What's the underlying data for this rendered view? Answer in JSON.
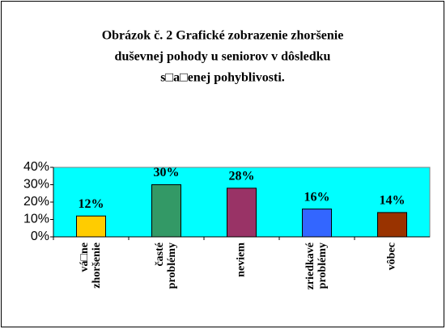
{
  "chart_data": {
    "type": "bar",
    "title": [
      "Obrázok č. 2 Grafické zobrazenie zhoršenie",
      "duševnej pohody u seniorov v dôsledku",
      "s□a□enej pohyblivosti."
    ],
    "categories": [
      [
        "vá□ne",
        "zhoršenie"
      ],
      [
        "časté",
        "problémy"
      ],
      [
        "neviem"
      ],
      [
        "zriedkavé",
        "problémy"
      ],
      [
        "vôbec"
      ]
    ],
    "values": [
      12,
      30,
      28,
      16,
      14
    ],
    "value_labels": [
      "12%",
      "30%",
      "28%",
      "16%",
      "14%"
    ],
    "colors": [
      "#ffcc00",
      "#339966",
      "#993366",
      "#3366ff",
      "#993300"
    ],
    "plot_background": "#00ffff",
    "ylim": [
      0,
      40
    ],
    "yticks": [
      {
        "value": 0,
        "label": "0%"
      },
      {
        "value": 10,
        "label": "10%"
      },
      {
        "value": 20,
        "label": "20%"
      },
      {
        "value": 30,
        "label": "30%"
      },
      {
        "value": 40,
        "label": "40%"
      }
    ],
    "grid": false
  }
}
